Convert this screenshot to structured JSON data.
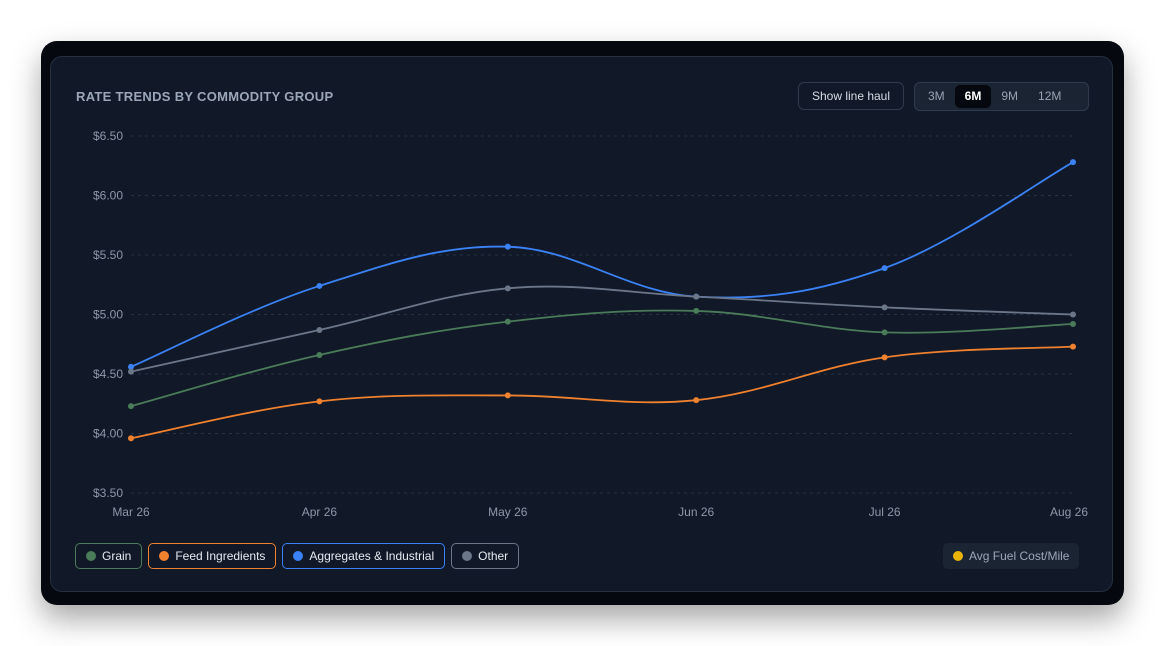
{
  "header": {
    "title": "RATE TRENDS BY COMMODITY GROUP",
    "line_haul_label": "Show line haul",
    "ranges": [
      {
        "label": "3M",
        "active": false
      },
      {
        "label": "6M",
        "active": true
      },
      {
        "label": "9M",
        "active": false
      },
      {
        "label": "12M",
        "active": false
      }
    ]
  },
  "chart_data": {
    "type": "line",
    "title": "RATE TRENDS BY COMMODITY GROUP",
    "categories": [
      "Mar 26",
      "Apr 26",
      "May 26",
      "Jun 26",
      "Jul 26",
      "Aug 26"
    ],
    "y_ticks": [
      "$6.50",
      "$6.00",
      "$5.50",
      "$5.00",
      "$4.50",
      "$4.00",
      "$3.50"
    ],
    "ylim": [
      3.5,
      6.5
    ],
    "grid": true,
    "legend_position": "bottom-left",
    "series": [
      {
        "name": "Grain",
        "color": "#4a7c59",
        "values": [
          4.23,
          4.66,
          4.94,
          5.03,
          4.85,
          4.92
        ]
      },
      {
        "name": "Feed Ingredients",
        "color": "#f0812e",
        "values": [
          3.96,
          4.27,
          4.32,
          4.28,
          4.64,
          4.73
        ]
      },
      {
        "name": "Aggregates & Industrial",
        "color": "#3b82f6",
        "values": [
          4.56,
          5.24,
          5.57,
          5.15,
          5.39,
          6.28
        ]
      },
      {
        "name": "Other",
        "color": "#6b7789",
        "values": [
          4.52,
          4.87,
          5.22,
          5.15,
          5.06,
          5.0
        ]
      }
    ],
    "extra_legend": {
      "name": "Avg Fuel Cost/Mile",
      "color": "#eab308"
    }
  }
}
